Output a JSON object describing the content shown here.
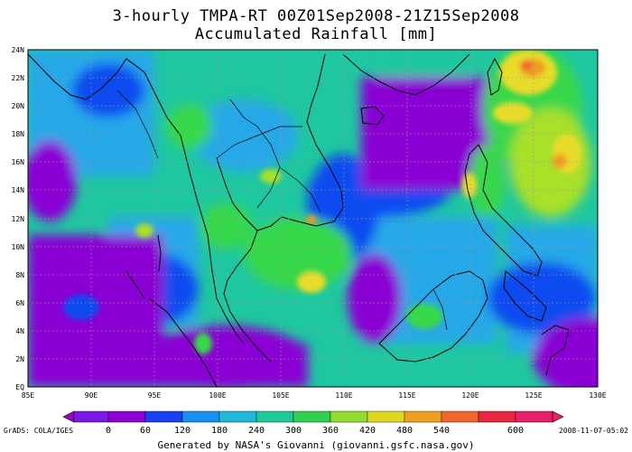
{
  "title": {
    "line1": "3-hourly TMPA-RT 00Z01Sep2008-21Z15Sep2008",
    "line2": "Accumulated Rainfall [mm]"
  },
  "map": {
    "lon_labels": [
      "85E",
      "90E",
      "95E",
      "100E",
      "105E",
      "110E",
      "115E",
      "120E",
      "125E",
      "130E"
    ],
    "lat_labels": [
      "EQ",
      "2N",
      "4N",
      "6N",
      "8N",
      "10N",
      "12N",
      "14N",
      "16N",
      "18N",
      "20N",
      "22N",
      "24N"
    ],
    "colors": {
      "background_low": "#8a00d4",
      "blue": "#0f4cf0",
      "cyan": "#27a8e8",
      "teal": "#1fc7a0",
      "green": "#38d84b",
      "yellow_green": "#a8e02c",
      "yellow": "#e8dc2a",
      "orange": "#f09c24",
      "red_orange": "#f0602a",
      "red": "#e82a3a"
    }
  },
  "colorbar": {
    "ticks": [
      "0",
      "60",
      "120",
      "180",
      "240",
      "300",
      "360",
      "420",
      "480",
      "540",
      "600"
    ],
    "colors": [
      "#a000c8",
      "#7a18e8",
      "#1840f0",
      "#1890f0",
      "#20b8d8",
      "#20c898",
      "#30d050",
      "#90dc30",
      "#e0d820",
      "#f0a020",
      "#f06828",
      "#e82840",
      "#e8206a"
    ]
  },
  "footer": {
    "left": "GrADS: COLA/IGES",
    "right": "2008-11-07-05:02",
    "credit": "Generated by NASA's Giovanni (giovanni.gsfc.nasa.gov)"
  }
}
